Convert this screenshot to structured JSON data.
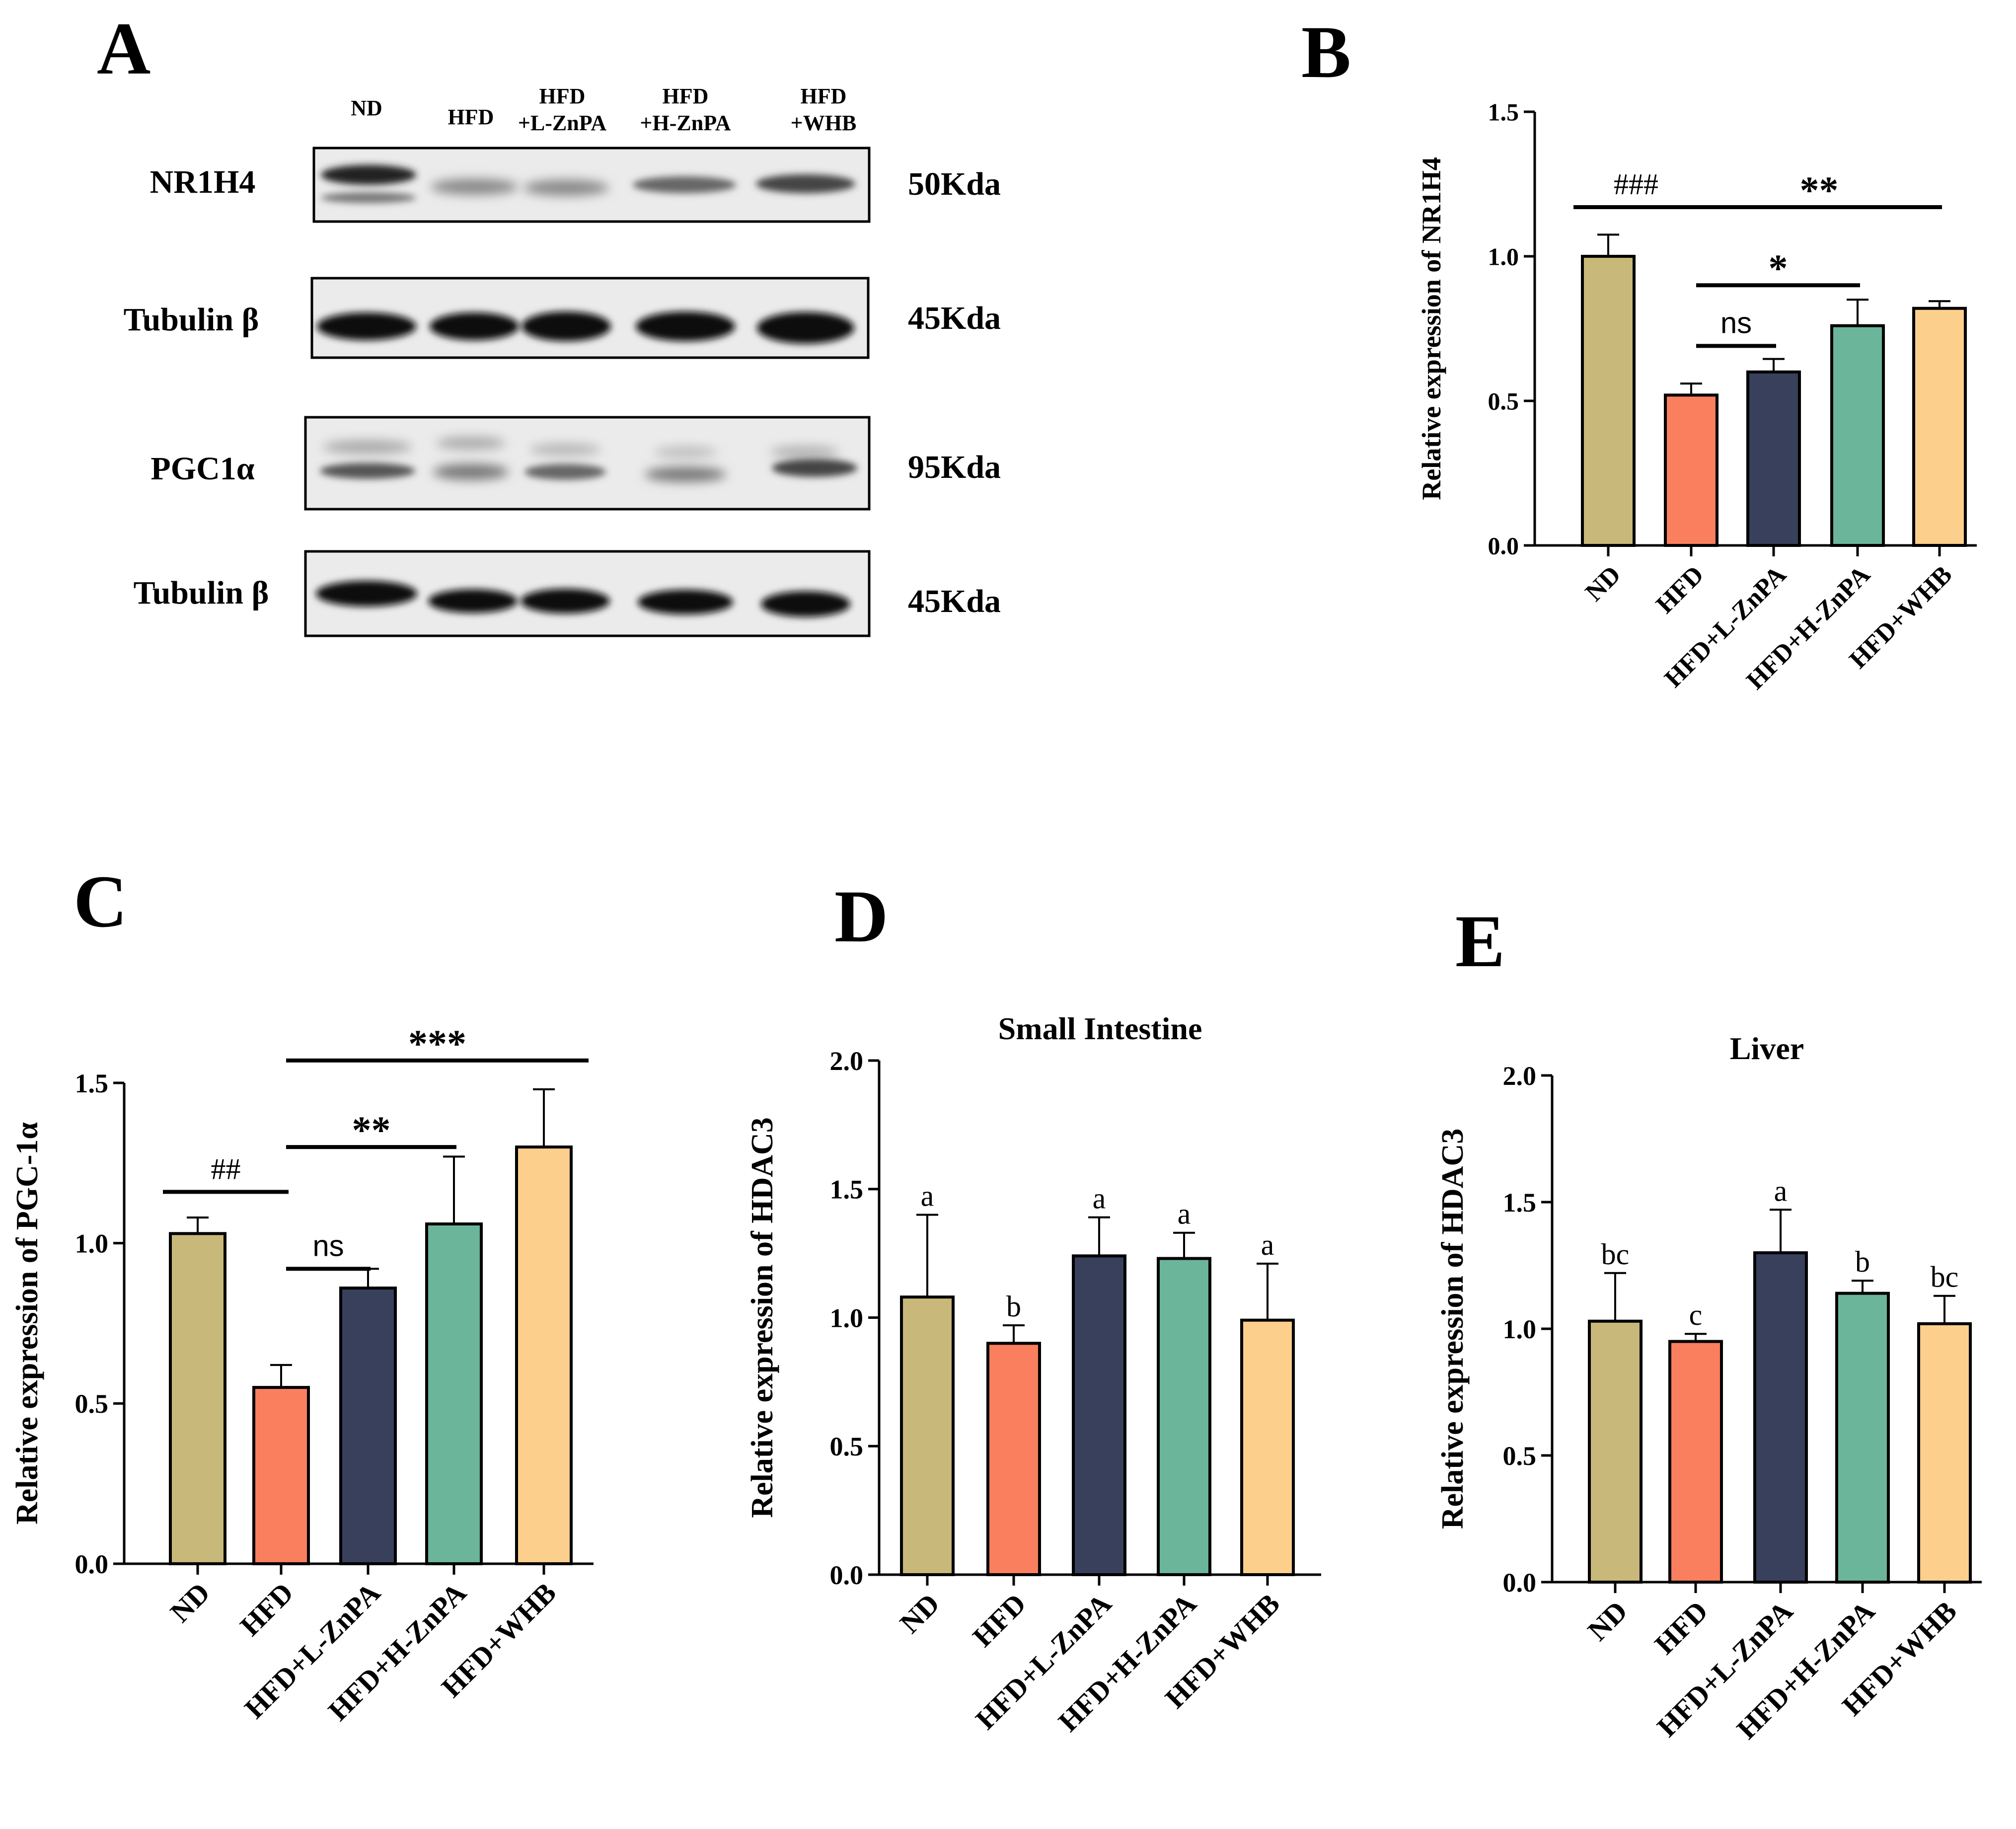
{
  "panel_letters": {
    "A": "A",
    "B": "B",
    "C": "C",
    "D": "D",
    "E": "E"
  },
  "colors": {
    "ND": "#c8b87a",
    "HFD": "#fa7f5f",
    "L": "#38405c",
    "H": "#6bb59b",
    "WHB": "#fdcf8d",
    "axis": "#000000"
  },
  "western_blot": {
    "lane_headers": [
      {
        "line1": "ND",
        "line2": ""
      },
      {
        "line1": "HFD",
        "line2": ""
      },
      {
        "line1": "HFD",
        "line2": "+L-ZnPA"
      },
      {
        "line1": "HFD",
        "line2": "+H-ZnPA"
      },
      {
        "line1": "HFD",
        "line2": "+WHB"
      }
    ],
    "blots": [
      {
        "protein": "NR1H4",
        "size": "50Kda"
      },
      {
        "protein": "Tubulin β",
        "size": "45Kda"
      },
      {
        "protein": "PGC1α",
        "size": "95Kda"
      },
      {
        "protein": "Tubulin β",
        "size": "45Kda"
      }
    ]
  },
  "chart_data": [
    {
      "panel": "B",
      "type": "bar",
      "title": "",
      "categories": [
        "ND",
        "HFD",
        "HFD+L-ZnPA",
        "HFD+H-ZnPA",
        "HFD+WHB"
      ],
      "values": [
        1.0,
        0.52,
        0.6,
        0.76,
        0.82
      ],
      "errors": [
        0.075,
        0.04,
        0.045,
        0.09,
        0.025
      ],
      "ylabel": "Relative expression of NR1H4",
      "xlabel": "",
      "ylim": [
        0,
        1.5
      ],
      "yticks": [
        "0.0",
        "0.5",
        "1.0",
        "1.5"
      ],
      "bar_labels": [],
      "brackets": [
        {
          "from": 0,
          "to": 1,
          "y": 1.17,
          "label": "###"
        },
        {
          "from": 1,
          "to": 4,
          "y": 1.17,
          "label": "**"
        },
        {
          "from": 1,
          "to": 3,
          "y": 0.9,
          "label": "*"
        },
        {
          "from": 1,
          "to": 2,
          "y": 0.69,
          "label": "ns"
        }
      ]
    },
    {
      "panel": "C",
      "type": "bar",
      "title": "",
      "categories": [
        "ND",
        "HFD",
        "HFD+L-ZnPA",
        "HFD+H-ZnPA",
        "HFD+WHB"
      ],
      "values": [
        1.03,
        0.55,
        0.86,
        1.06,
        1.3
      ],
      "errors": [
        0.05,
        0.07,
        0.06,
        0.21,
        0.18
      ],
      "ylabel": "Relative expression of  PGC-1α",
      "xlabel": "",
      "ylim": [
        0,
        1.5
      ],
      "yticks": [
        "0.0",
        "0.5",
        "1.0",
        "1.5"
      ],
      "bar_labels": [],
      "brackets": [
        {
          "from": 0,
          "to": 1,
          "y": 1.16,
          "label": "##"
        },
        {
          "from": 1,
          "to": 2,
          "y": 0.92,
          "label": "ns"
        },
        {
          "from": 1,
          "to": 3,
          "y": 1.3,
          "label": "**"
        },
        {
          "from": 1,
          "to": 5,
          "y": 1.57,
          "label": "***"
        }
      ]
    },
    {
      "panel": "D",
      "type": "bar",
      "title": "Small Intestine",
      "categories": [
        "ND",
        "HFD",
        "HFD+L-ZnPA",
        "HFD+H-ZnPA",
        "HFD+WHB"
      ],
      "values": [
        1.08,
        0.9,
        1.24,
        1.23,
        0.99
      ],
      "errors": [
        0.32,
        0.07,
        0.15,
        0.1,
        0.22
      ],
      "ylabel": "Relative expression of HDAC3",
      "xlabel": "",
      "ylim": [
        0,
        2.0
      ],
      "yticks": [
        "0.0",
        "0.5",
        "1.0",
        "1.5",
        "2.0"
      ],
      "bar_labels": [
        "a",
        "b",
        "a",
        "a",
        "a"
      ],
      "brackets": []
    },
    {
      "panel": "E",
      "type": "bar",
      "title": "Liver",
      "categories": [
        "ND",
        "HFD",
        "HFD+L-ZnPA",
        "HFD+H-ZnPA",
        "HFD+WHB"
      ],
      "values": [
        1.03,
        0.95,
        1.3,
        1.14,
        1.02
      ],
      "errors": [
        0.19,
        0.03,
        0.17,
        0.05,
        0.11
      ],
      "ylabel": "Relative expression of HDAC3",
      "xlabel": "",
      "ylim": [
        0,
        2.0
      ],
      "yticks": [
        "0.0",
        "0.5",
        "1.0",
        "1.5",
        "2.0"
      ],
      "bar_labels": [
        "bc",
        "c",
        "a",
        "b",
        "bc"
      ],
      "brackets": []
    }
  ]
}
